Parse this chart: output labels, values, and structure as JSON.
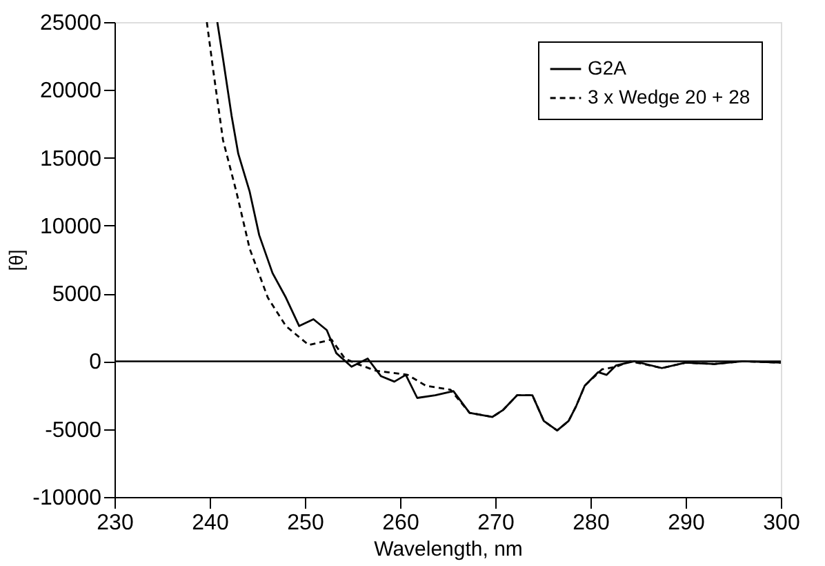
{
  "chart_data": {
    "type": "line",
    "xlabel": "Wavelength, nm",
    "ylabel": "[θ]",
    "xlim": [
      230,
      300
    ],
    "ylim": [
      -10000,
      25000
    ],
    "xticks": [
      230,
      240,
      250,
      260,
      270,
      280,
      290,
      300
    ],
    "yticks": [
      -10000,
      -5000,
      0,
      5000,
      10000,
      15000,
      20000,
      25000
    ],
    "grid": false,
    "legend": "top right",
    "ref_lines": [
      {
        "axis": "y",
        "value": 0,
        "color": "#000000"
      }
    ],
    "series": [
      {
        "name": "G2A",
        "color": "#000000",
        "line_style": "solid",
        "x": [
          240.8,
          241.4,
          242.3,
          243.0,
          244.2,
          245.2,
          246.6,
          248.0,
          249.4,
          250.9,
          252.3,
          253.3,
          254.9,
          256.6,
          258.0,
          259.4,
          260.6,
          261.8,
          263.7,
          265.6,
          267.3,
          269.7,
          270.8,
          272.3,
          273.9,
          275.1,
          276.5,
          277.7,
          278.5,
          279.4,
          280.8,
          281.7,
          282.7,
          284.6,
          287.5,
          290,
          293,
          296,
          300
        ],
        "values": [
          25000,
          22300,
          18100,
          15300,
          12500,
          9300,
          6500,
          4700,
          2600,
          3100,
          2300,
          600,
          -400,
          200,
          -1100,
          -1500,
          -1000,
          -2700,
          -2500,
          -2200,
          -3800,
          -4100,
          -3600,
          -2500,
          -2500,
          -4400,
          -5100,
          -4400,
          -3300,
          -1800,
          -800,
          -1000,
          -300,
          0,
          -500,
          -100,
          -200,
          0,
          -100
        ]
      },
      {
        "name": "3 x Wedge 20 + 28",
        "color": "#000000",
        "line_style": "dashed",
        "x": [
          239.7,
          240.4,
          241.4,
          242.8,
          244.2,
          246.1,
          248.0,
          250.4,
          252.8,
          254.2,
          255.5,
          257.5,
          260.8,
          262.7,
          265.3,
          267.3,
          269.7,
          270.8,
          272.3,
          273.9,
          275.1,
          276.5,
          277.7,
          278.5,
          279.4,
          281.2,
          282.7,
          284.2,
          287.5,
          290,
          293,
          296,
          300
        ],
        "values": [
          25000,
          21300,
          16300,
          12500,
          8300,
          4700,
          2600,
          1200,
          1600,
          200,
          -200,
          -700,
          -1000,
          -1800,
          -2100,
          -3800,
          -4100,
          -3600,
          -2500,
          -2500,
          -4400,
          -5100,
          -4400,
          -3300,
          -1800,
          -600,
          -400,
          0,
          -500,
          -100,
          -200,
          0,
          -100
        ]
      }
    ]
  }
}
